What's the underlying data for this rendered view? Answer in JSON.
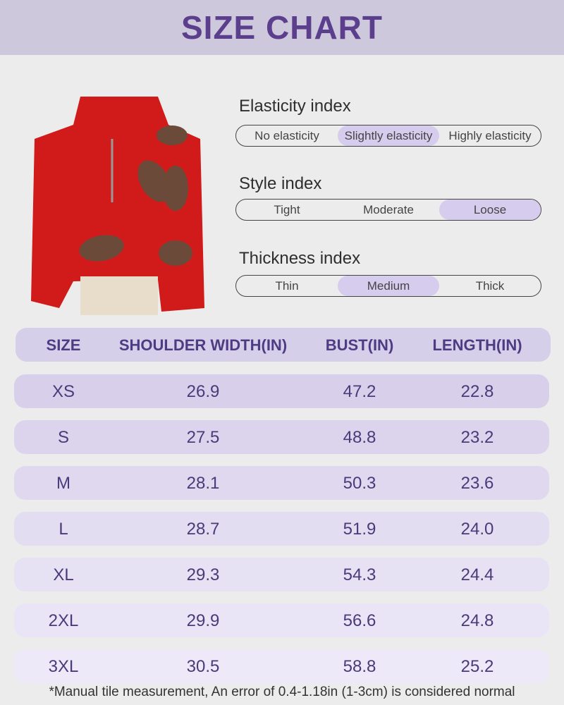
{
  "header": {
    "title": "SIZE CHART"
  },
  "indices": [
    {
      "label": "Elasticity index",
      "options": [
        "No elasticity",
        "Slightly elasticity",
        "Highly elasticity"
      ],
      "selected": 1
    },
    {
      "label": "Style index",
      "options": [
        "Tight",
        "Moderate",
        "Loose"
      ],
      "selected": 2
    },
    {
      "label": "Thickness index",
      "options": [
        "Thin",
        "Medium",
        "Thick"
      ],
      "selected": 1
    }
  ],
  "table": {
    "header": [
      "SIZE",
      "SHOULDER WIDTH(IN)",
      "BUST(IN)",
      "LENGTH(IN)"
    ],
    "rows": [
      [
        "XS",
        "26.9",
        "47.2",
        "22.8"
      ],
      [
        "S",
        "27.5",
        "48.8",
        "23.2"
      ],
      [
        "M",
        "28.1",
        "50.3",
        "23.6"
      ],
      [
        "L",
        "28.7",
        "51.9",
        "24.0"
      ],
      [
        "XL",
        "29.3",
        "54.3",
        "24.4"
      ],
      [
        "2XL",
        "29.9",
        "56.6",
        "24.8"
      ],
      [
        "3XL",
        "30.5",
        "58.8",
        "25.2"
      ]
    ]
  },
  "footnote": "*Manual tile measurement, An error of 0.4-1.18in (1-3cm) is considered normal"
}
